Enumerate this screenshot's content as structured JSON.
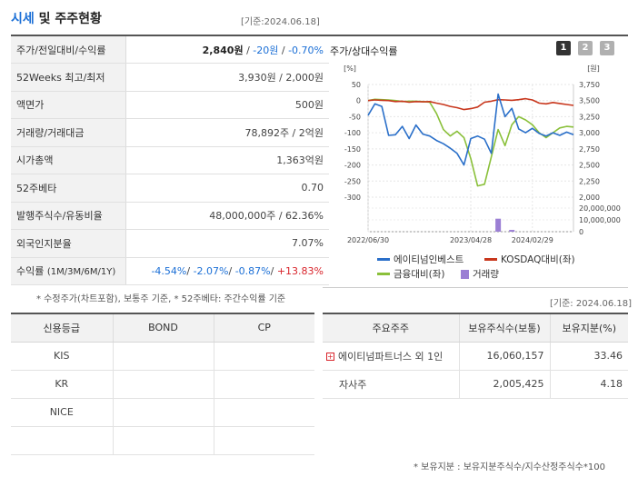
{
  "header": {
    "title_accent": "시세",
    "title_rest": " 및 주주현황",
    "date": "[기준:2024.06.18]"
  },
  "quote_rows": [
    {
      "label": "주가/전일대비/수익률",
      "price": "2,840원",
      "sep1": " / ",
      "change": "-20원",
      "sep2": " / ",
      "rate": "-0.70%"
    },
    {
      "label": "52Weeks 최고/최저",
      "value": "3,930원 / 2,000원"
    },
    {
      "label": "액면가",
      "value": "500원"
    },
    {
      "label": "거래량/거래대금",
      "value": "78,892주 / 2억원"
    },
    {
      "label": "시가총액",
      "value": "1,363억원"
    },
    {
      "label": "52주베타",
      "value": "0.70"
    },
    {
      "label": "발행주식수/유동비율",
      "value": "48,000,000주 / 62.36%"
    },
    {
      "label": "외국인지분율",
      "value": "7.07%"
    },
    {
      "label": "수익률",
      "sublabel": "(1M/3M/6M/1Y)",
      "r1": "-4.54%",
      "r2": "-2.07%",
      "r3": "-0.87%",
      "r4": "+13.83%",
      "sep": "/ "
    }
  ],
  "quote_note": "* 수정주가(차트포함), 보통주 기준, * 52주베타: 주간수익률 기준",
  "chart": {
    "title": "주가/상대수익률",
    "pages": [
      "1",
      "2",
      "3"
    ],
    "left_unit": "[%]",
    "right_unit": "[원]",
    "left_ticks": [
      "50",
      "0",
      "-50",
      "-100",
      "-150",
      "-200",
      "-250",
      "-300"
    ],
    "right_ticks": [
      "3,750",
      "3,500",
      "3,250",
      "3,000",
      "2,750",
      "2,500",
      "2,250",
      "2,000"
    ],
    "vol_ticks": [
      "20,000,000",
      "10,000,000",
      "0"
    ],
    "x_ticks": [
      "2022/06/30",
      "2023/04/28",
      "2024/02/29"
    ],
    "legend": {
      "s1": "에이티넘인베스트",
      "s2": "KOSDAQ대비(좌)",
      "s3": "금융대비(좌)",
      "s4": "거래량"
    },
    "colors": {
      "s1": "#2a6fc9",
      "s2": "#c8371d",
      "s3": "#8ac03a",
      "s4": "#9b7fd4"
    }
  },
  "chart_data": {
    "type": "line",
    "x": [
      0,
      1,
      2,
      3,
      4,
      5,
      6,
      7,
      8,
      9,
      10,
      11,
      12,
      13,
      14,
      15,
      16,
      17,
      18,
      19,
      20,
      21,
      22,
      23,
      24,
      25,
      26,
      27,
      28,
      29,
      30
    ],
    "series": [
      {
        "name": "에이티넘인베스트",
        "axis": "right",
        "values": [
          3270,
          3450,
          3410,
          2960,
          2970,
          3100,
          2910,
          3120,
          2980,
          2950,
          2880,
          2830,
          2760,
          2680,
          2500,
          2910,
          2950,
          2900,
          2680,
          3600,
          3250,
          3380,
          3060,
          3000,
          3070,
          2990,
          2950,
          3000,
          2960,
          3010,
          2970
        ]
      },
      {
        "name": "KOSDAQ대비(좌)",
        "axis": "left",
        "values": [
          0,
          2,
          1,
          0,
          -3,
          -2,
          -5,
          -3,
          -4,
          -3,
          -8,
          -12,
          -18,
          -22,
          -28,
          -25,
          -20,
          -5,
          -2,
          3,
          2,
          1,
          3,
          6,
          2,
          -8,
          -10,
          -6,
          -9,
          -12,
          -15
        ]
      },
      {
        "name": "금융대비(좌)",
        "axis": "left",
        "values": [
          0,
          4,
          3,
          2,
          0,
          -3,
          -2,
          -2,
          -3,
          -5,
          -40,
          -90,
          -110,
          -95,
          -115,
          -180,
          -265,
          -260,
          -175,
          -90,
          -140,
          -75,
          -50,
          -60,
          -75,
          -100,
          -115,
          -100,
          -85,
          -80,
          -82
        ]
      }
    ],
    "volume": {
      "name": "거래량",
      "axis": "volume",
      "x": [
        19,
        21
      ],
      "values": [
        11000000,
        1500000
      ]
    },
    "ylim_left": [
      -300,
      50
    ],
    "ylim_right": [
      2000,
      3750
    ],
    "ylim_volume": [
      0,
      20000000
    ],
    "grid": true
  },
  "credit": {
    "headers": [
      "신용등급",
      "BOND",
      "CP"
    ],
    "rows": [
      [
        "KIS",
        "",
        ""
      ],
      [
        "KR",
        "",
        ""
      ],
      [
        "NICE",
        "",
        ""
      ],
      [
        "",
        "",
        ""
      ]
    ]
  },
  "holders": {
    "date": "[기준: 2024.06.18]",
    "headers": [
      "주요주주",
      "보유주식수(보통)",
      "보유지분(%)"
    ],
    "rows": [
      {
        "name": "에이티넘파트너스 외 1인",
        "shares": "16,060,157",
        "ratio": "33.46",
        "expand": "+"
      },
      {
        "name": "자사주",
        "shares": "2,005,425",
        "ratio": "4.18"
      }
    ],
    "note": "* 보유지분 : 보유지분주식수/지수산정주식수*100"
  }
}
